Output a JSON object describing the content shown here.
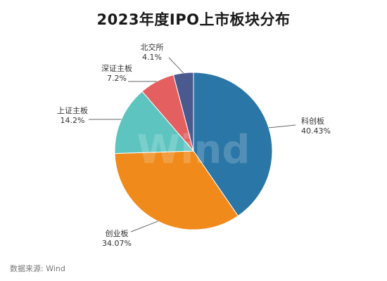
{
  "chart_data": {
    "type": "pie",
    "title": "2023年度IPO上市板块分布",
    "slices": [
      {
        "label": "科创板",
        "value": 40.43,
        "pct_label": "40.43%",
        "color": "#2a76a6"
      },
      {
        "label": "创业板",
        "value": 34.07,
        "pct_label": "34.07%",
        "color": "#f08a1b"
      },
      {
        "label": "上证主板",
        "value": 14.2,
        "pct_label": "14.2%",
        "color": "#5dc4c0"
      },
      {
        "label": "深证主板",
        "value": 7.2,
        "pct_label": "7.2%",
        "color": "#e46060"
      },
      {
        "label": "北交所",
        "value": 4.1,
        "pct_label": "4.1%",
        "color": "#4a5a8f"
      }
    ],
    "watermark": "Wind"
  },
  "source": "数据来源: Wind"
}
